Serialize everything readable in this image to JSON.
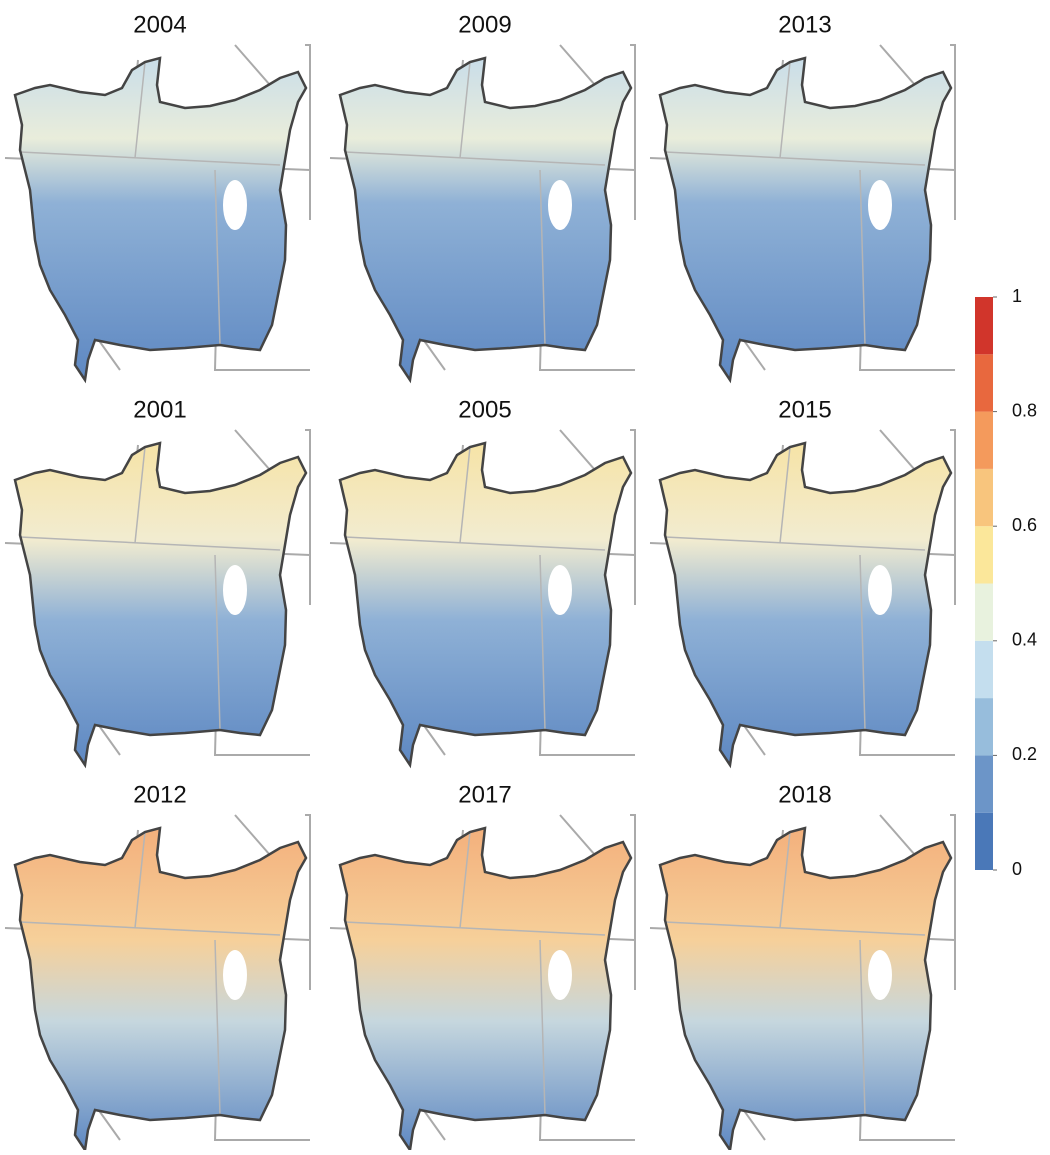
{
  "panels": [
    {
      "title": "2004"
    },
    {
      "title": "2009"
    },
    {
      "title": "2013"
    },
    {
      "title": "2001"
    },
    {
      "title": "2005"
    },
    {
      "title": "2015"
    },
    {
      "title": "2012"
    },
    {
      "title": "2017"
    },
    {
      "title": "2018"
    }
  ],
  "colorbar": {
    "lim": [
      0,
      1
    ],
    "ticks": [
      0,
      0.2,
      0.4,
      0.6,
      0.8,
      1
    ],
    "colors": [
      "#4a78b8",
      "#6c95c8",
      "#97bddc",
      "#c4deee",
      "#e8f2de",
      "#fbe79a",
      "#f8c57d",
      "#f49a5c",
      "#e8683e",
      "#d1352b"
    ]
  }
}
